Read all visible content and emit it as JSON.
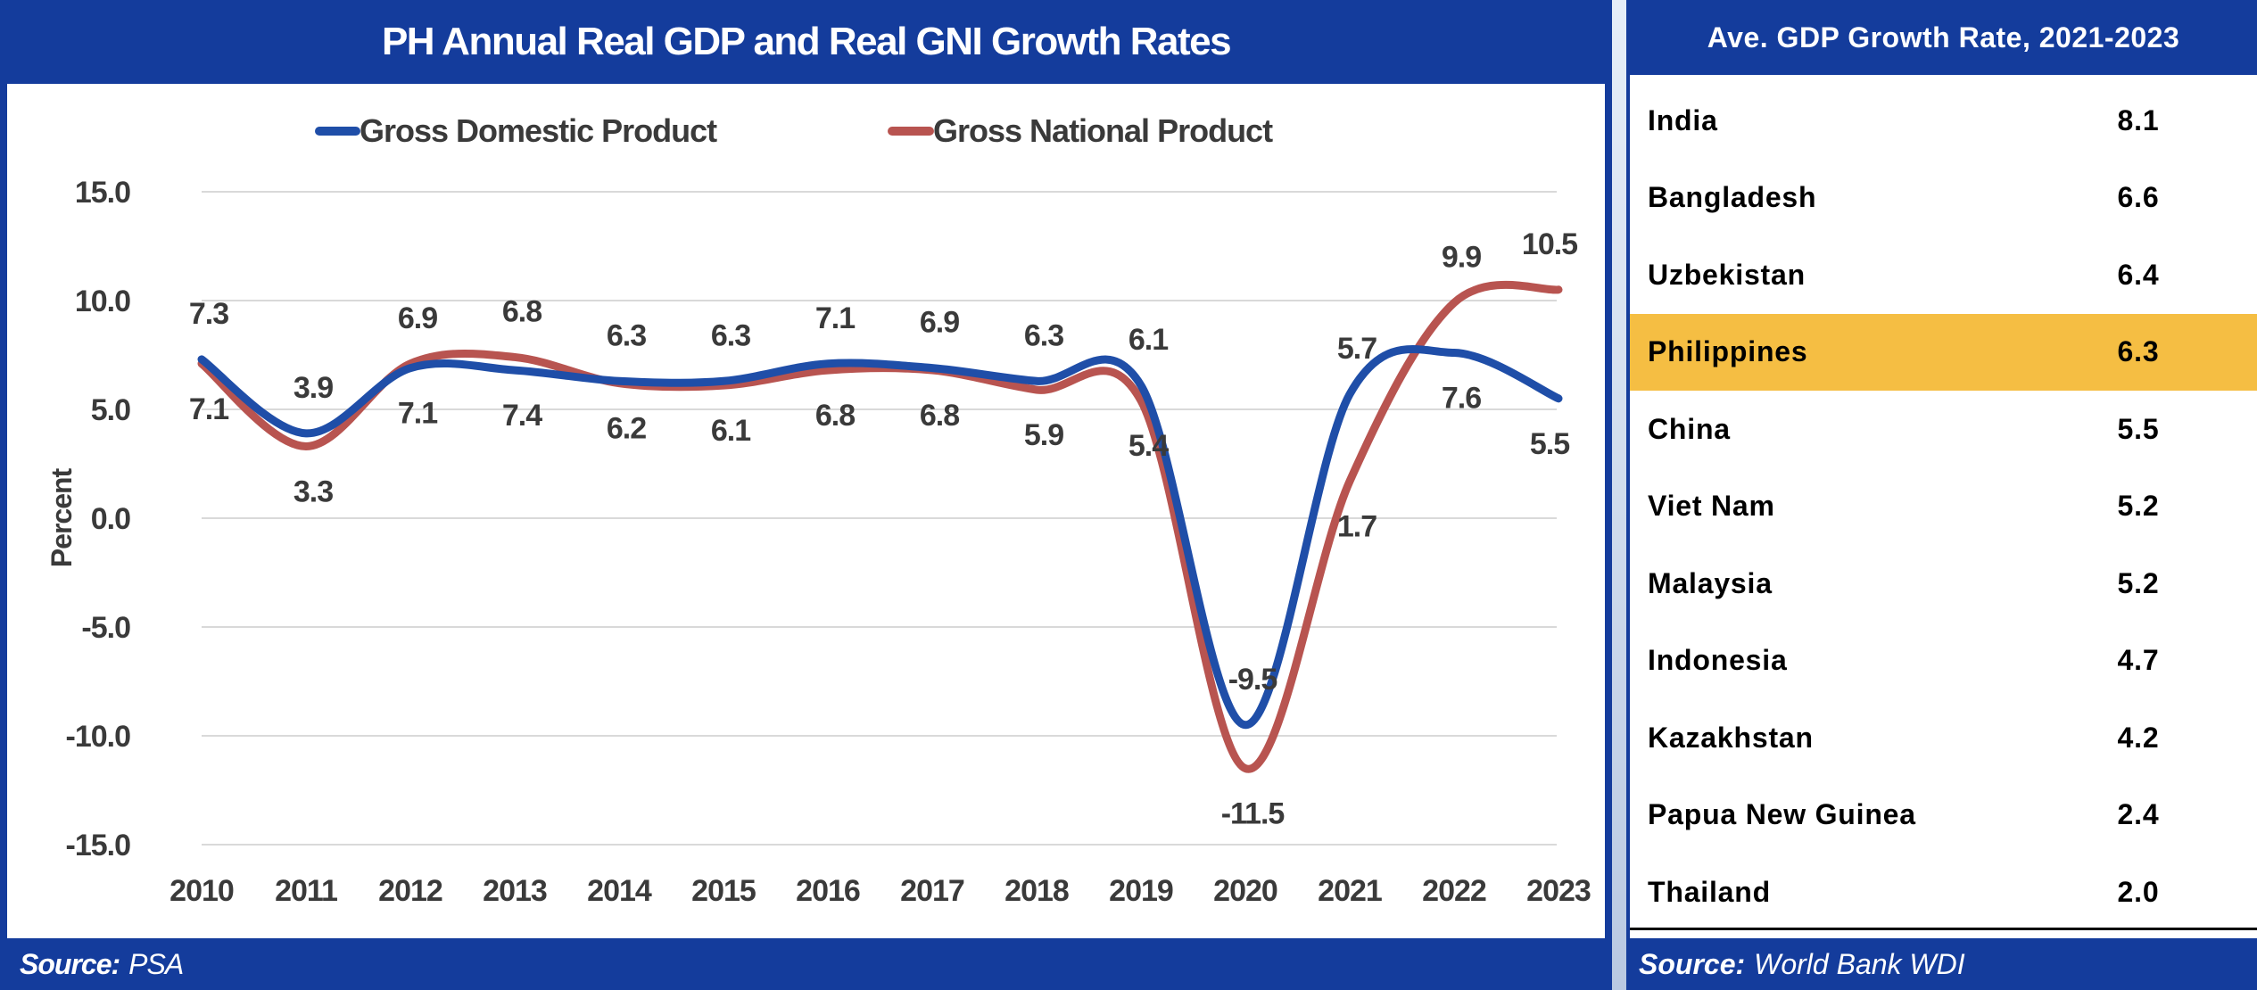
{
  "left_panel": {
    "title": "PH Annual Real GDP and Real GNI Growth Rates",
    "source_label": "Source:",
    "source_value": "PSA"
  },
  "chart_data": {
    "type": "line",
    "title": "PH Annual Real GDP and Real GNI Growth Rates",
    "xlabel": "",
    "ylabel": "Percent",
    "ylim": [
      -15,
      15
    ],
    "yticks": [
      "15.0",
      "10.0",
      "5.0",
      "0.0",
      "-5.0",
      "-10.0",
      "-15.0"
    ],
    "ytick_values": [
      15,
      10,
      5,
      0,
      -5,
      -10,
      -15
    ],
    "grid": true,
    "legend_placement": "top",
    "smooth": true,
    "categories": [
      "2010",
      "2011",
      "2012",
      "2013",
      "2014",
      "2015",
      "2016",
      "2017",
      "2018",
      "2019",
      "2020",
      "2021",
      "2022",
      "2023"
    ],
    "series": [
      {
        "name": "Gross Domestic Product",
        "color": "#1f4ea8",
        "values": [
          7.3,
          3.9,
          6.9,
          6.8,
          6.3,
          6.3,
          7.1,
          6.9,
          6.3,
          6.1,
          -9.5,
          5.7,
          7.6,
          5.5
        ]
      },
      {
        "name": "Gross National Product",
        "color": "#b85450",
        "values": [
          7.1,
          3.3,
          7.1,
          7.4,
          6.2,
          6.1,
          6.8,
          6.8,
          5.9,
          5.4,
          -11.5,
          1.7,
          9.9,
          10.5
        ]
      }
    ]
  },
  "right_panel": {
    "title": "Ave. GDP Growth Rate, 2021-2023",
    "highlight_color": "#f5be43",
    "rows": [
      {
        "country": "India",
        "value": "8.1"
      },
      {
        "country": "Bangladesh",
        "value": "6.6"
      },
      {
        "country": "Uzbekistan",
        "value": "6.4"
      },
      {
        "country": "Philippines",
        "value": "6.3",
        "highlight": true
      },
      {
        "country": "China",
        "value": "5.5"
      },
      {
        "country": "Viet Nam",
        "value": "5.2"
      },
      {
        "country": "Malaysia",
        "value": "5.2"
      },
      {
        "country": "Indonesia",
        "value": "4.7"
      },
      {
        "country": "Kazakhstan",
        "value": "4.2"
      },
      {
        "country": "Papua New Guinea",
        "value": "2.4"
      },
      {
        "country": "Thailand",
        "value": "2.0"
      }
    ],
    "source_label": "Source:",
    "source_value": "World Bank WDI"
  },
  "colors": {
    "header_blue": "#143c9c"
  }
}
